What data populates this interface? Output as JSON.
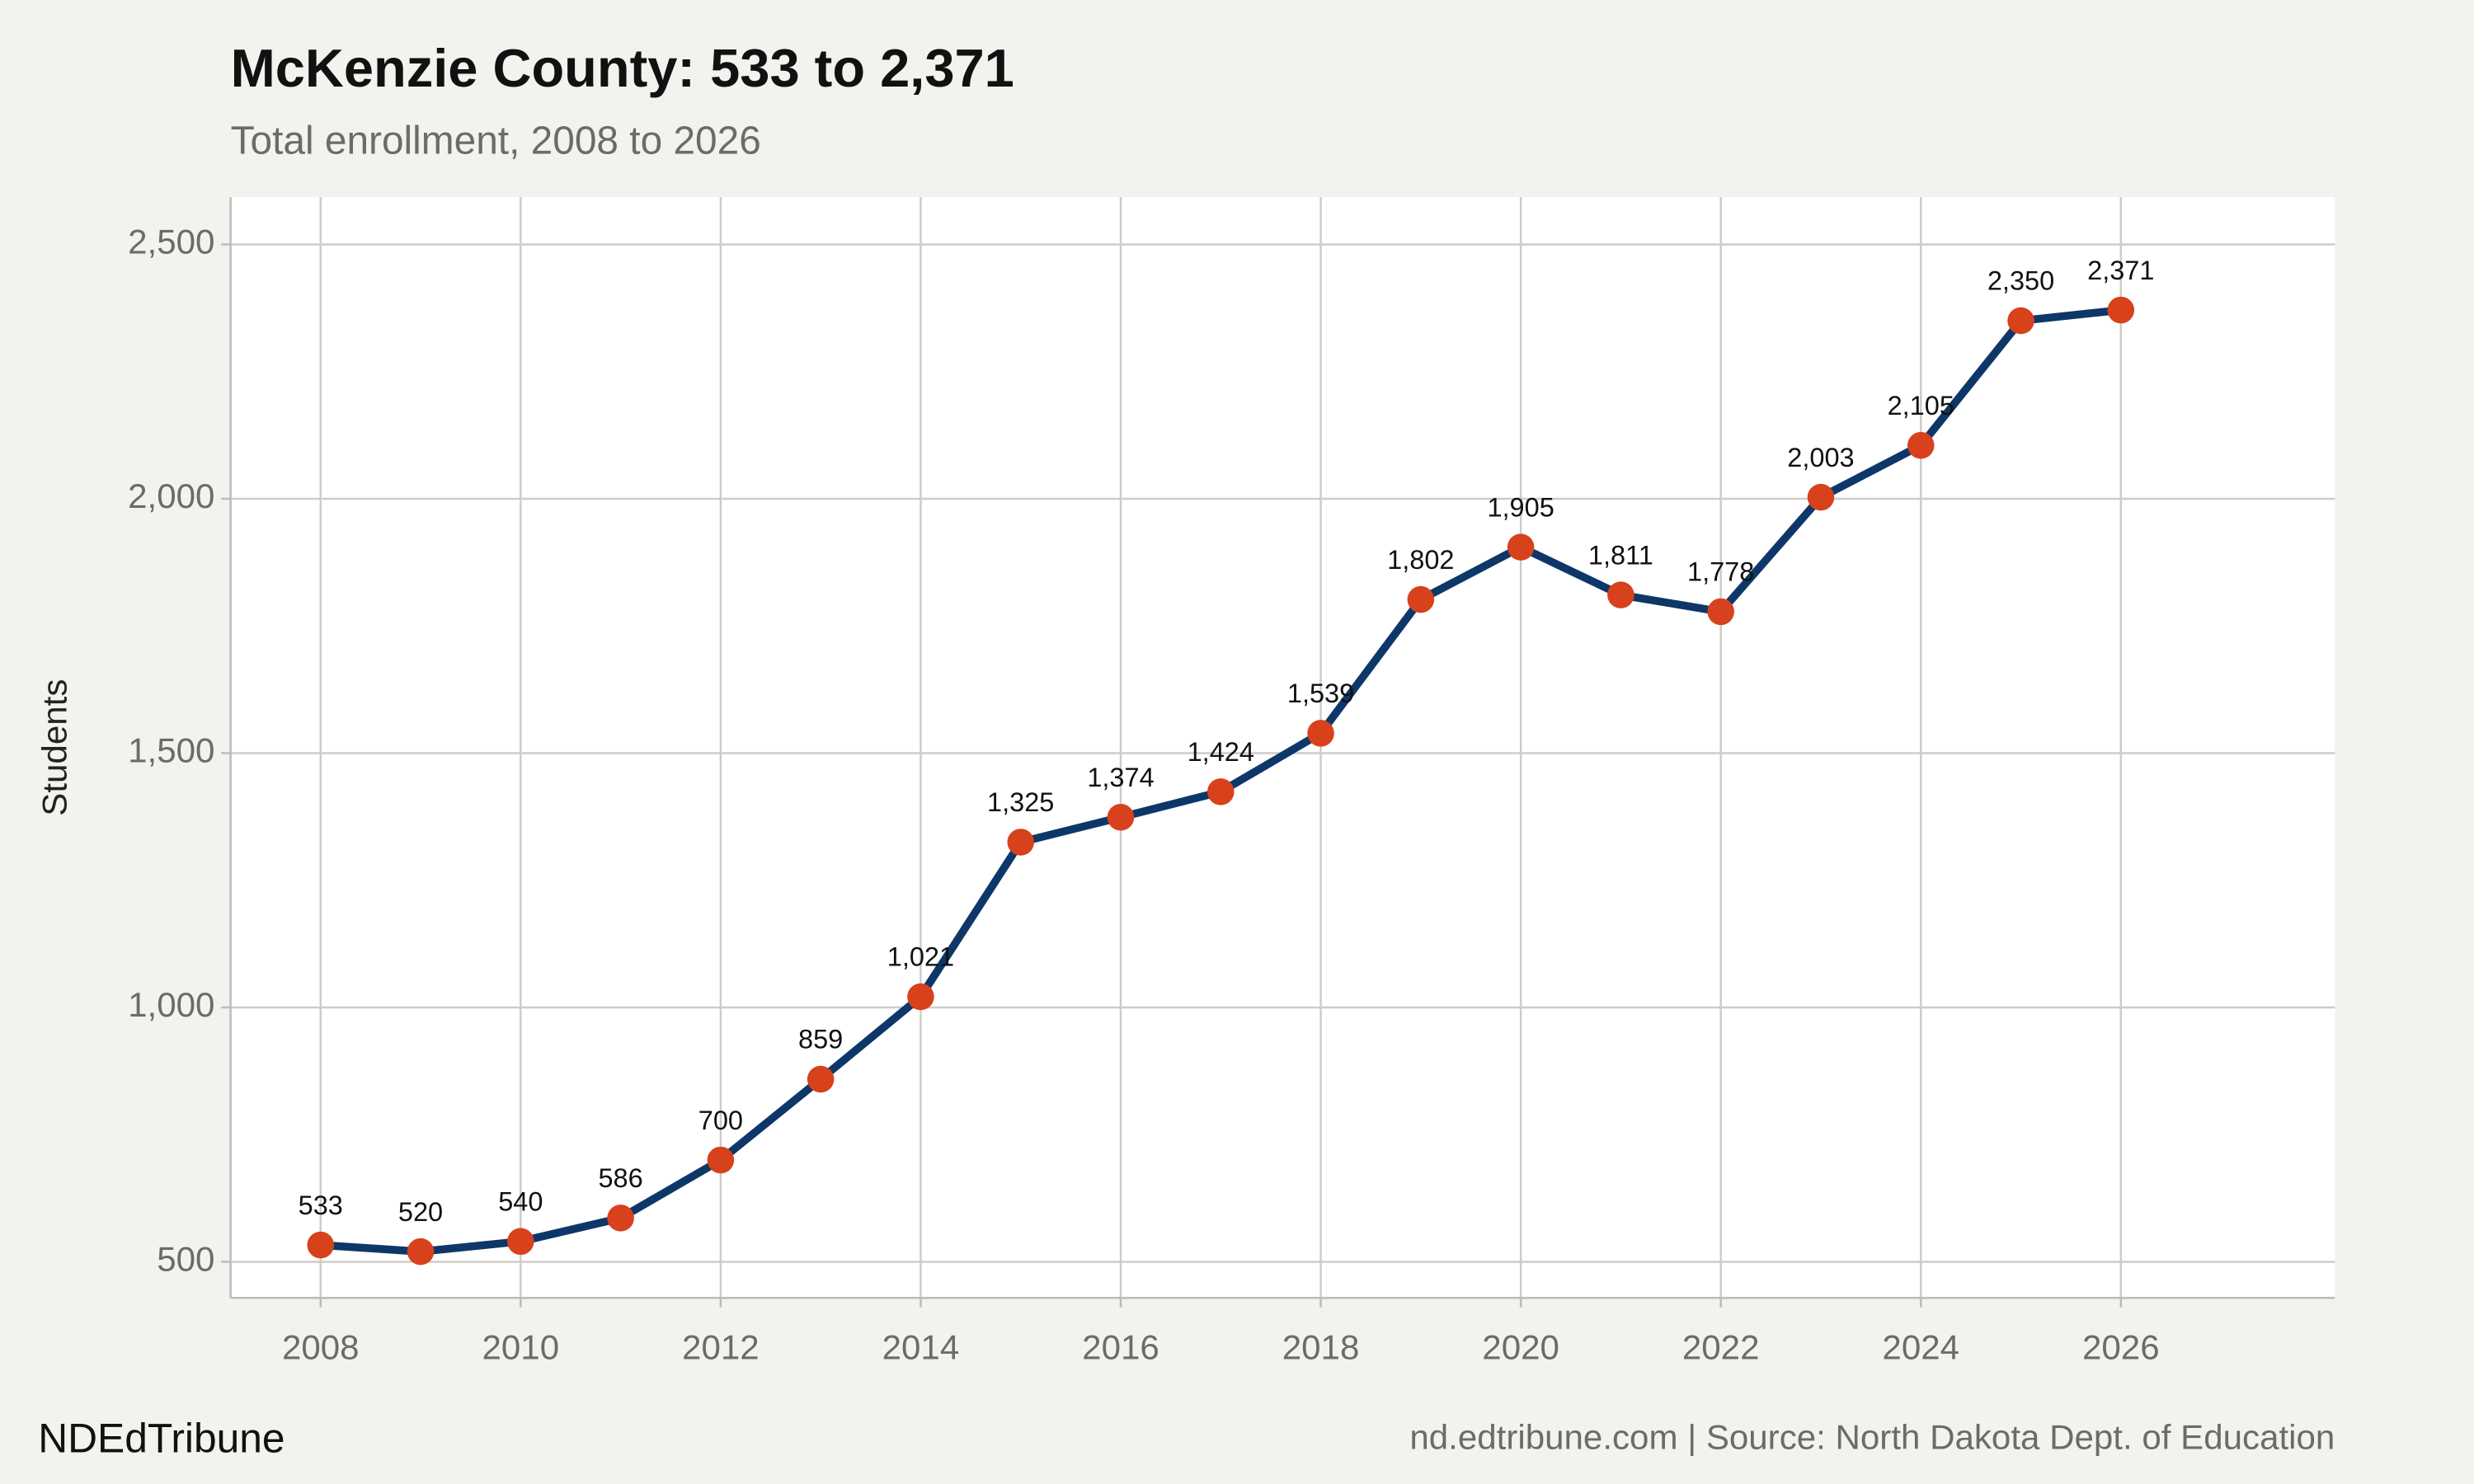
{
  "chart_data": {
    "type": "line",
    "title": "McKenzie County: 533 to 2,371",
    "subtitle": "Total enrollment, 2008 to 2026",
    "y_label": "Students",
    "footer_left": "NDEdTribune",
    "footer_right": "nd.edtribune.com | Source: North Dakota Dept. of Education",
    "x": [
      2008,
      2009,
      2010,
      2011,
      2012,
      2013,
      2014,
      2015,
      2016,
      2017,
      2018,
      2019,
      2020,
      2021,
      2022,
      2023,
      2024,
      2025,
      2026
    ],
    "series": [
      {
        "name": "Students",
        "line_color": "#0d3768",
        "color": "#d7411b",
        "values": [
          533,
          520,
          540,
          586,
          700,
          859,
          1021,
          1325,
          1374,
          1424,
          1539,
          1802,
          1905,
          1811,
          1778,
          2003,
          2105,
          2350,
          2371
        ],
        "value_labels": [
          "533",
          "520",
          "540",
          "586",
          "700",
          "859",
          "1,021",
          "1,325",
          "1,374",
          "1,424",
          "1,539",
          "1,802",
          "1,905",
          "1,811",
          "1,778",
          "2,003",
          "2,105",
          "2,350",
          "2,371"
        ]
      }
    ],
    "xlim": [
      2007.1,
      2028.14
    ],
    "ylim": [
      429,
      2593
    ],
    "xticks": [
      2008,
      2010,
      2012,
      2014,
      2016,
      2018,
      2020,
      2022,
      2024,
      2026
    ],
    "yticks": [
      500,
      {
        "value": 1000,
        "label": "1,000"
      },
      {
        "value": 1500,
        "label": "1,500"
      },
      {
        "value": 2000,
        "label": "2,000"
      },
      {
        "value": 2500,
        "label": "2,500"
      }
    ],
    "grid": true
  }
}
